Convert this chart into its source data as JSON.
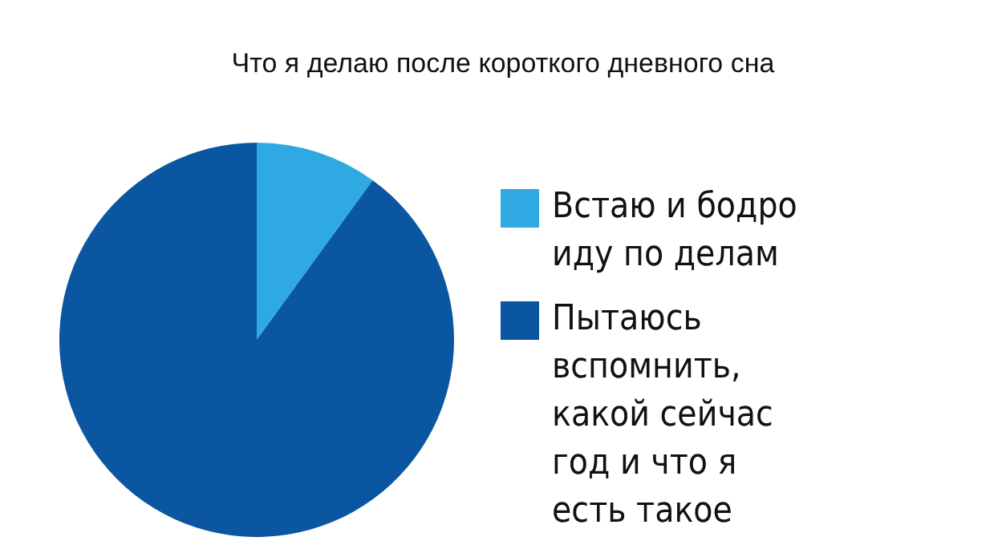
{
  "chart_data": {
    "type": "pie",
    "title": "Что я делаю после короткого дневного сна",
    "categories": [
      "Встаю и бодро иду по делам",
      "Пытаюсь вспомнить, какой сейчас год и что я есть такое"
    ],
    "values": [
      10,
      90
    ],
    "colors": [
      "#2ea9e1",
      "#0a56a0"
    ],
    "legend": "right"
  }
}
